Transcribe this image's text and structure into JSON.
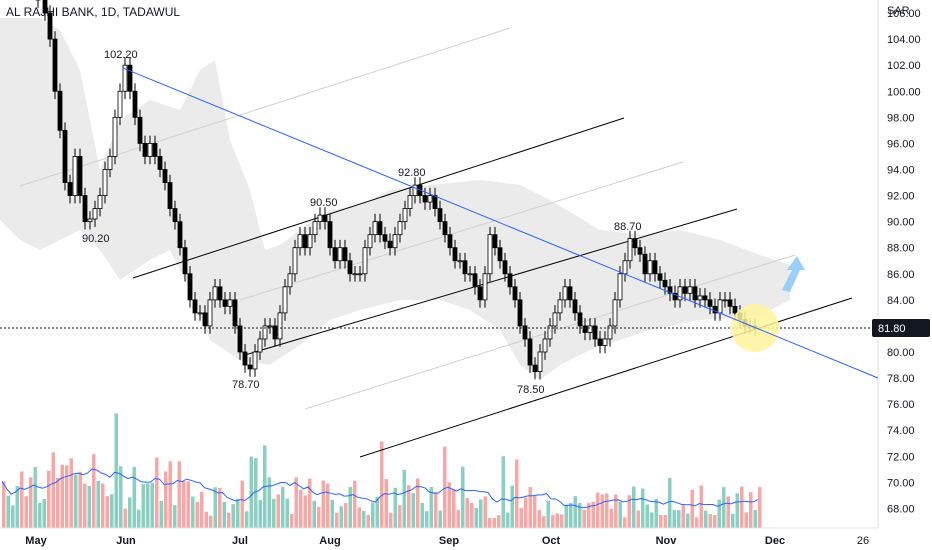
{
  "header": {
    "title": "AL RAJHI BANK, 1D, TADAWUL",
    "currency": "SAR"
  },
  "chart_data": {
    "type": "candlestick",
    "title": "AL RAJHI BANK, 1D, TADAWUL",
    "ylabel": "SAR",
    "ylim": [
      66.5,
      107
    ],
    "y_ticks": [
      "68.00",
      "70.00",
      "72.00",
      "74.00",
      "76.00",
      "78.00",
      "80.00",
      "82.00",
      "84.00",
      "86.00",
      "88.00",
      "90.00",
      "92.00",
      "94.00",
      "96.00",
      "98.00",
      "100.00",
      "102.00",
      "104.00",
      "106.00"
    ],
    "x_ticks": [
      "May",
      "Jun",
      "Jul",
      "Aug",
      "Sep",
      "Oct",
      "Nov",
      "Dec",
      "26"
    ],
    "current_price": "81.80",
    "annotations": [
      "102.20",
      "90.20",
      "78.70",
      "90.50",
      "92.80",
      "78.50",
      "88.70"
    ],
    "colors": {
      "up": "#26a69a",
      "down": "#ef5350",
      "candle_fill_up": "#ffffff",
      "candle_fill_down": "#000000",
      "trendline": "#2962ff",
      "channel": "#000000",
      "cloud": "#e0e0e0",
      "highlight": "#fff59d",
      "arrow": "#90caf9",
      "volume_ma": "#2962ff"
    }
  }
}
